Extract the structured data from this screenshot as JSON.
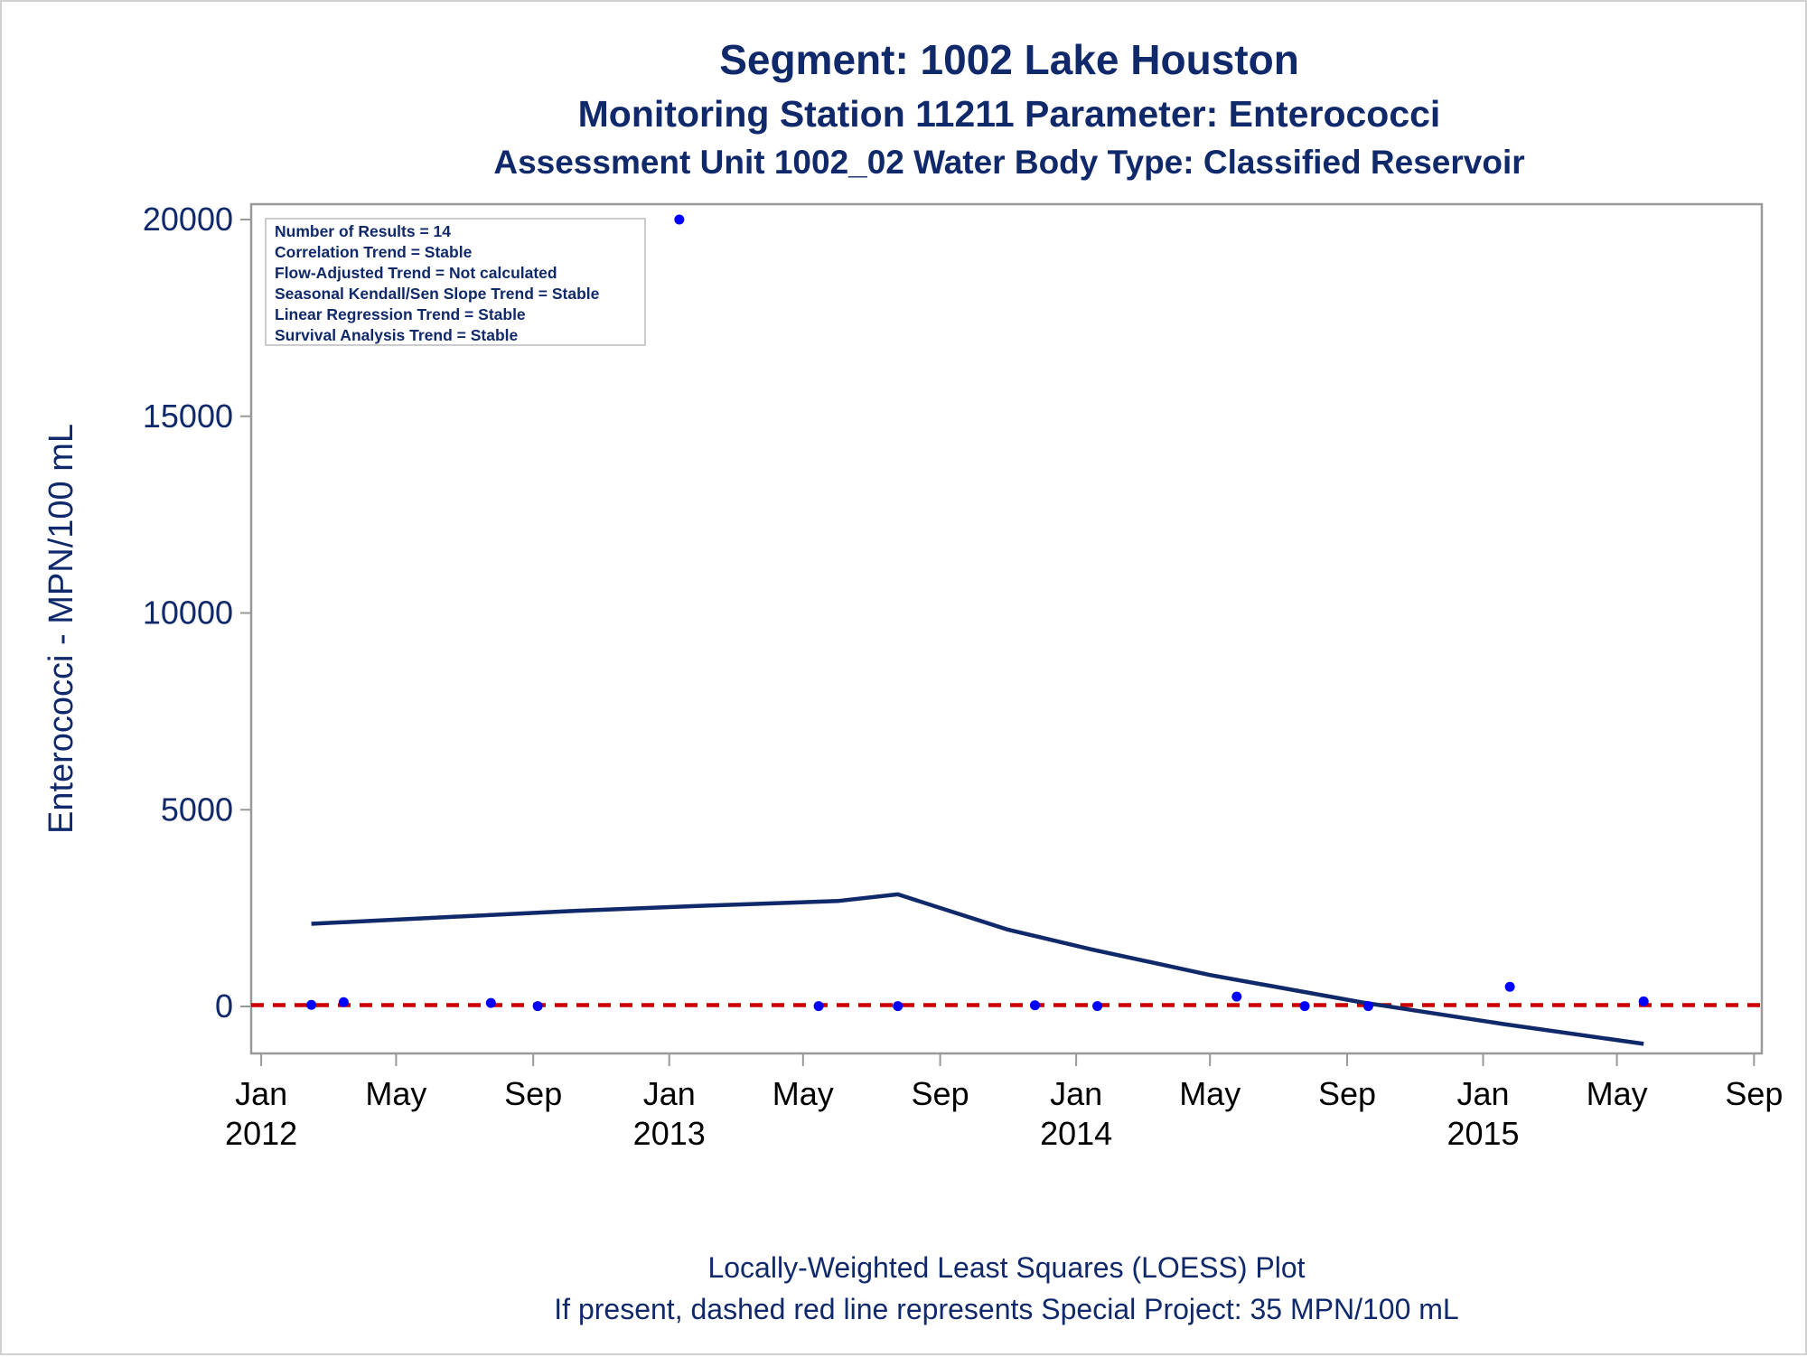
{
  "titles": [
    "Segment: 1002  Lake Houston",
    "Monitoring Station 11211 Parameter: Enterococci",
    "Assessment Unit 1002_02   Water Body Type: Classified Reservoir"
  ],
  "stats_box": [
    "Number of Results = 14",
    "Correlation Trend = Stable",
    "Flow-Adjusted Trend = Not calculated",
    "Seasonal Kendall/Sen Slope Trend = Stable",
    "Linear Regression Trend = Stable",
    "Survival Analysis Trend = Stable"
  ],
  "footnotes": [
    "Locally-Weighted Least Squares (LOESS) Plot",
    "If present, dashed red line represents Special Project: 35 MPN/100 mL"
  ],
  "colors": {
    "points": "#0000ff",
    "loess": "#10296b",
    "reference": "#cc0000",
    "text": "#10296b"
  },
  "chart_data": {
    "type": "scatter",
    "ylabel": "Enterococci - MPN/100 mL",
    "xlabel": "",
    "ylim": [
      -1200,
      20000
    ],
    "xlim": [
      "2011-12-23",
      "2015-09-08"
    ],
    "y_ticks": [
      0,
      5000,
      10000,
      15000,
      20000
    ],
    "x_ticks": [
      {
        "date": "2012-01-01",
        "month": "Jan",
        "year": "2012"
      },
      {
        "date": "2012-05-01",
        "month": "May",
        "year": ""
      },
      {
        "date": "2012-09-01",
        "month": "Sep",
        "year": ""
      },
      {
        "date": "2013-01-01",
        "month": "Jan",
        "year": "2013"
      },
      {
        "date": "2013-05-01",
        "month": "May",
        "year": ""
      },
      {
        "date": "2013-09-01",
        "month": "Sep",
        "year": ""
      },
      {
        "date": "2014-01-01",
        "month": "Jan",
        "year": "2014"
      },
      {
        "date": "2014-05-01",
        "month": "May",
        "year": ""
      },
      {
        "date": "2014-09-01",
        "month": "Sep",
        "year": ""
      },
      {
        "date": "2015-01-01",
        "month": "Jan",
        "year": "2015"
      },
      {
        "date": "2015-05-01",
        "month": "May",
        "year": ""
      },
      {
        "date": "2015-09-01",
        "month": "Sep",
        "year": ""
      }
    ],
    "points": [
      {
        "x": "2012-02-15",
        "y": 40
      },
      {
        "x": "2012-03-15",
        "y": 110
      },
      {
        "x": "2012-07-25",
        "y": 90
      },
      {
        "x": "2012-09-05",
        "y": 10
      },
      {
        "x": "2013-01-10",
        "y": 20000
      },
      {
        "x": "2013-05-15",
        "y": 10
      },
      {
        "x": "2013-07-25",
        "y": 10
      },
      {
        "x": "2013-11-25",
        "y": 30
      },
      {
        "x": "2014-01-20",
        "y": 10
      },
      {
        "x": "2014-05-25",
        "y": 250
      },
      {
        "x": "2014-07-25",
        "y": 10
      },
      {
        "x": "2014-09-20",
        "y": 10
      },
      {
        "x": "2015-01-25",
        "y": 500
      },
      {
        "x": "2015-05-25",
        "y": 130
      }
    ],
    "loess": [
      {
        "x": "2012-02-15",
        "y": 2100
      },
      {
        "x": "2012-06-01",
        "y": 2250
      },
      {
        "x": "2012-10-01",
        "y": 2420
      },
      {
        "x": "2013-02-01",
        "y": 2560
      },
      {
        "x": "2013-06-01",
        "y": 2680
      },
      {
        "x": "2013-07-25",
        "y": 2850
      },
      {
        "x": "2013-11-01",
        "y": 1950
      },
      {
        "x": "2014-01-15",
        "y": 1450
      },
      {
        "x": "2014-05-01",
        "y": 800
      },
      {
        "x": "2014-09-15",
        "y": 100
      },
      {
        "x": "2015-01-20",
        "y": -450
      },
      {
        "x": "2015-05-25",
        "y": -950
      }
    ],
    "reference_line": {
      "y": 35
    }
  }
}
